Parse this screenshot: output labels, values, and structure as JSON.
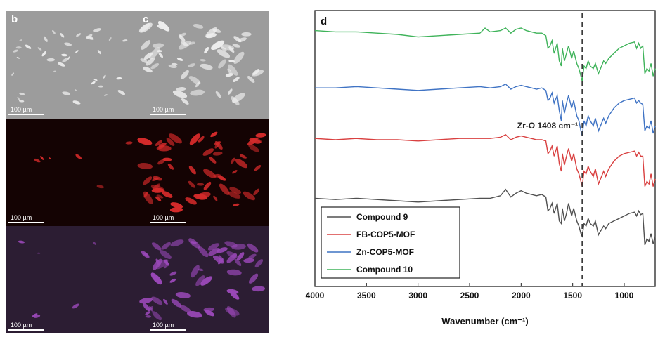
{
  "micrographs": {
    "rows": [
      {
        "name": "sem",
        "background": "#9c9c9c",
        "particle": "#eeeeee"
      },
      {
        "name": "red-map",
        "background": "#140303",
        "particle": "#d42a2a"
      },
      {
        "name": "purple-map",
        "background": "#2c1d33",
        "particle": "#9a48b8"
      }
    ],
    "panel_labels": [
      "b",
      "c"
    ],
    "scale_bar_text": "100 µm"
  },
  "chart_data": {
    "type": "line",
    "panel_label": "d",
    "xlabel": "Wavenumber (cm⁻¹)",
    "ylabel": "",
    "xlim": [
      4000,
      700
    ],
    "x_ticks": [
      4000,
      3500,
      3000,
      2500,
      2000,
      1500,
      1000
    ],
    "y_ticks_shown": false,
    "annotation": {
      "text": "Zr-O 1408 cm⁻¹",
      "x": 1408,
      "line_style": "dashed"
    },
    "legend_position": "bottom-left",
    "series": [
      {
        "name": "Compound 9",
        "color": "#505050",
        "offset": 0,
        "points": [
          [
            4000,
            92
          ],
          [
            3800,
            91
          ],
          [
            3600,
            92
          ],
          [
            3400,
            91
          ],
          [
            3200,
            90
          ],
          [
            3000,
            89
          ],
          [
            2800,
            90
          ],
          [
            2600,
            91
          ],
          [
            2400,
            92
          ],
          [
            2300,
            92
          ],
          [
            2200,
            94
          ],
          [
            2150,
            99
          ],
          [
            2100,
            93
          ],
          [
            2050,
            96
          ],
          [
            2000,
            98
          ],
          [
            1950,
            96
          ],
          [
            1900,
            95
          ],
          [
            1850,
            94
          ],
          [
            1800,
            95
          ],
          [
            1760,
            93
          ],
          [
            1740,
            82
          ],
          [
            1720,
            84
          ],
          [
            1700,
            88
          ],
          [
            1680,
            80
          ],
          [
            1650,
            88
          ],
          [
            1630,
            74
          ],
          [
            1610,
            72
          ],
          [
            1600,
            84
          ],
          [
            1580,
            74
          ],
          [
            1560,
            80
          ],
          [
            1540,
            88
          ],
          [
            1510,
            78
          ],
          [
            1490,
            84
          ],
          [
            1460,
            74
          ],
          [
            1440,
            70
          ],
          [
            1420,
            64
          ],
          [
            1408,
            62
          ],
          [
            1390,
            72
          ],
          [
            1370,
            70
          ],
          [
            1350,
            76
          ],
          [
            1330,
            72
          ],
          [
            1300,
            70
          ],
          [
            1280,
            74
          ],
          [
            1250,
            63
          ],
          [
            1230,
            66
          ],
          [
            1200,
            70
          ],
          [
            1180,
            68
          ],
          [
            1150,
            72
          ],
          [
            1100,
            74
          ],
          [
            1050,
            76
          ],
          [
            1000,
            78
          ],
          [
            950,
            80
          ],
          [
            900,
            81
          ],
          [
            880,
            78
          ],
          [
            860,
            82
          ],
          [
            840,
            79
          ],
          [
            820,
            80
          ],
          [
            800,
            55
          ],
          [
            780,
            60
          ],
          [
            760,
            58
          ],
          [
            740,
            64
          ],
          [
            720,
            56
          ],
          [
            700,
            62
          ]
        ]
      },
      {
        "name": "FB-COP5-MOF",
        "color": "#d94040",
        "offset": 1,
        "points": [
          [
            4000,
            96
          ],
          [
            3800,
            95
          ],
          [
            3600,
            96
          ],
          [
            3400,
            95
          ],
          [
            3200,
            95
          ],
          [
            3000,
            94
          ],
          [
            2800,
            95
          ],
          [
            2600,
            96
          ],
          [
            2400,
            96
          ],
          [
            2300,
            96
          ],
          [
            2200,
            97
          ],
          [
            2150,
            99
          ],
          [
            2100,
            95
          ],
          [
            2050,
            97
          ],
          [
            2000,
            98
          ],
          [
            1950,
            97
          ],
          [
            1900,
            96
          ],
          [
            1850,
            95
          ],
          [
            1800,
            95
          ],
          [
            1760,
            94
          ],
          [
            1740,
            84
          ],
          [
            1720,
            86
          ],
          [
            1700,
            90
          ],
          [
            1680,
            82
          ],
          [
            1650,
            90
          ],
          [
            1630,
            76
          ],
          [
            1610,
            70
          ],
          [
            1600,
            84
          ],
          [
            1580,
            75
          ],
          [
            1560,
            82
          ],
          [
            1540,
            88
          ],
          [
            1510,
            78
          ],
          [
            1490,
            84
          ],
          [
            1460,
            72
          ],
          [
            1440,
            68
          ],
          [
            1420,
            62
          ],
          [
            1408,
            58
          ],
          [
            1390,
            70
          ],
          [
            1370,
            68
          ],
          [
            1350,
            74
          ],
          [
            1330,
            70
          ],
          [
            1300,
            66
          ],
          [
            1280,
            72
          ],
          [
            1250,
            60
          ],
          [
            1230,
            64
          ],
          [
            1200,
            70
          ],
          [
            1180,
            66
          ],
          [
            1150,
            72
          ],
          [
            1100,
            78
          ],
          [
            1050,
            82
          ],
          [
            1000,
            84
          ],
          [
            950,
            85
          ],
          [
            900,
            86
          ],
          [
            880,
            82
          ],
          [
            860,
            85
          ],
          [
            840,
            82
          ],
          [
            820,
            82
          ],
          [
            800,
            58
          ],
          [
            780,
            62
          ],
          [
            760,
            60
          ],
          [
            740,
            68
          ],
          [
            720,
            58
          ],
          [
            700,
            64
          ]
        ]
      },
      {
        "name": "Zn-COP5-MOF",
        "color": "#3f73c4",
        "offset": 2,
        "points": [
          [
            4000,
            96
          ],
          [
            3800,
            96
          ],
          [
            3600,
            97
          ],
          [
            3400,
            96
          ],
          [
            3200,
            95
          ],
          [
            3000,
            94
          ],
          [
            2800,
            95
          ],
          [
            2600,
            96
          ],
          [
            2400,
            97
          ],
          [
            2300,
            96
          ],
          [
            2200,
            97
          ],
          [
            2150,
            99
          ],
          [
            2100,
            95
          ],
          [
            2050,
            97
          ],
          [
            2000,
            98
          ],
          [
            1950,
            97
          ],
          [
            1900,
            96
          ],
          [
            1850,
            95
          ],
          [
            1800,
            96
          ],
          [
            1760,
            94
          ],
          [
            1740,
            86
          ],
          [
            1720,
            88
          ],
          [
            1700,
            92
          ],
          [
            1680,
            84
          ],
          [
            1650,
            90
          ],
          [
            1630,
            78
          ],
          [
            1610,
            70
          ],
          [
            1600,
            86
          ],
          [
            1580,
            76
          ],
          [
            1560,
            84
          ],
          [
            1540,
            90
          ],
          [
            1510,
            80
          ],
          [
            1490,
            86
          ],
          [
            1460,
            74
          ],
          [
            1440,
            70
          ],
          [
            1420,
            62
          ],
          [
            1408,
            58
          ],
          [
            1390,
            70
          ],
          [
            1370,
            66
          ],
          [
            1350,
            74
          ],
          [
            1330,
            70
          ],
          [
            1300,
            66
          ],
          [
            1280,
            72
          ],
          [
            1250,
            62
          ],
          [
            1230,
            66
          ],
          [
            1200,
            72
          ],
          [
            1180,
            68
          ],
          [
            1150,
            74
          ],
          [
            1100,
            80
          ],
          [
            1050,
            84
          ],
          [
            1000,
            86
          ],
          [
            950,
            87
          ],
          [
            900,
            88
          ],
          [
            880,
            84
          ],
          [
            860,
            86
          ],
          [
            840,
            84
          ],
          [
            820,
            83
          ],
          [
            800,
            62
          ],
          [
            780,
            66
          ],
          [
            760,
            64
          ],
          [
            740,
            70
          ],
          [
            720,
            60
          ],
          [
            700,
            66
          ]
        ]
      },
      {
        "name": "Compound 10",
        "color": "#3fb35a",
        "offset": 3,
        "points": [
          [
            4000,
            98
          ],
          [
            3800,
            97
          ],
          [
            3600,
            97
          ],
          [
            3400,
            96
          ],
          [
            3200,
            95
          ],
          [
            3000,
            93
          ],
          [
            2800,
            94
          ],
          [
            2600,
            95
          ],
          [
            2400,
            96
          ],
          [
            2350,
            100
          ],
          [
            2300,
            97
          ],
          [
            2200,
            98
          ],
          [
            2150,
            100
          ],
          [
            2100,
            96
          ],
          [
            2050,
            99
          ],
          [
            2000,
            100
          ],
          [
            1950,
            98
          ],
          [
            1900,
            97
          ],
          [
            1850,
            96
          ],
          [
            1800,
            96
          ],
          [
            1760,
            94
          ],
          [
            1740,
            84
          ],
          [
            1720,
            86
          ],
          [
            1700,
            90
          ],
          [
            1680,
            80
          ],
          [
            1650,
            88
          ],
          [
            1630,
            74
          ],
          [
            1610,
            70
          ],
          [
            1600,
            84
          ],
          [
            1580,
            74
          ],
          [
            1560,
            80
          ],
          [
            1540,
            86
          ],
          [
            1510,
            76
          ],
          [
            1490,
            82
          ],
          [
            1460,
            72
          ],
          [
            1440,
            68
          ],
          [
            1420,
            62
          ],
          [
            1408,
            58
          ],
          [
            1390,
            70
          ],
          [
            1370,
            68
          ],
          [
            1350,
            74
          ],
          [
            1330,
            70
          ],
          [
            1300,
            68
          ],
          [
            1280,
            72
          ],
          [
            1250,
            64
          ],
          [
            1230,
            68
          ],
          [
            1200,
            74
          ],
          [
            1180,
            72
          ],
          [
            1150,
            76
          ],
          [
            1100,
            80
          ],
          [
            1050,
            84
          ],
          [
            1000,
            86
          ],
          [
            950,
            88
          ],
          [
            900,
            89
          ],
          [
            880,
            84
          ],
          [
            860,
            88
          ],
          [
            840,
            84
          ],
          [
            820,
            86
          ],
          [
            800,
            64
          ],
          [
            780,
            68
          ],
          [
            760,
            66
          ],
          [
            740,
            72
          ],
          [
            720,
            62
          ],
          [
            700,
            68
          ]
        ]
      }
    ]
  }
}
